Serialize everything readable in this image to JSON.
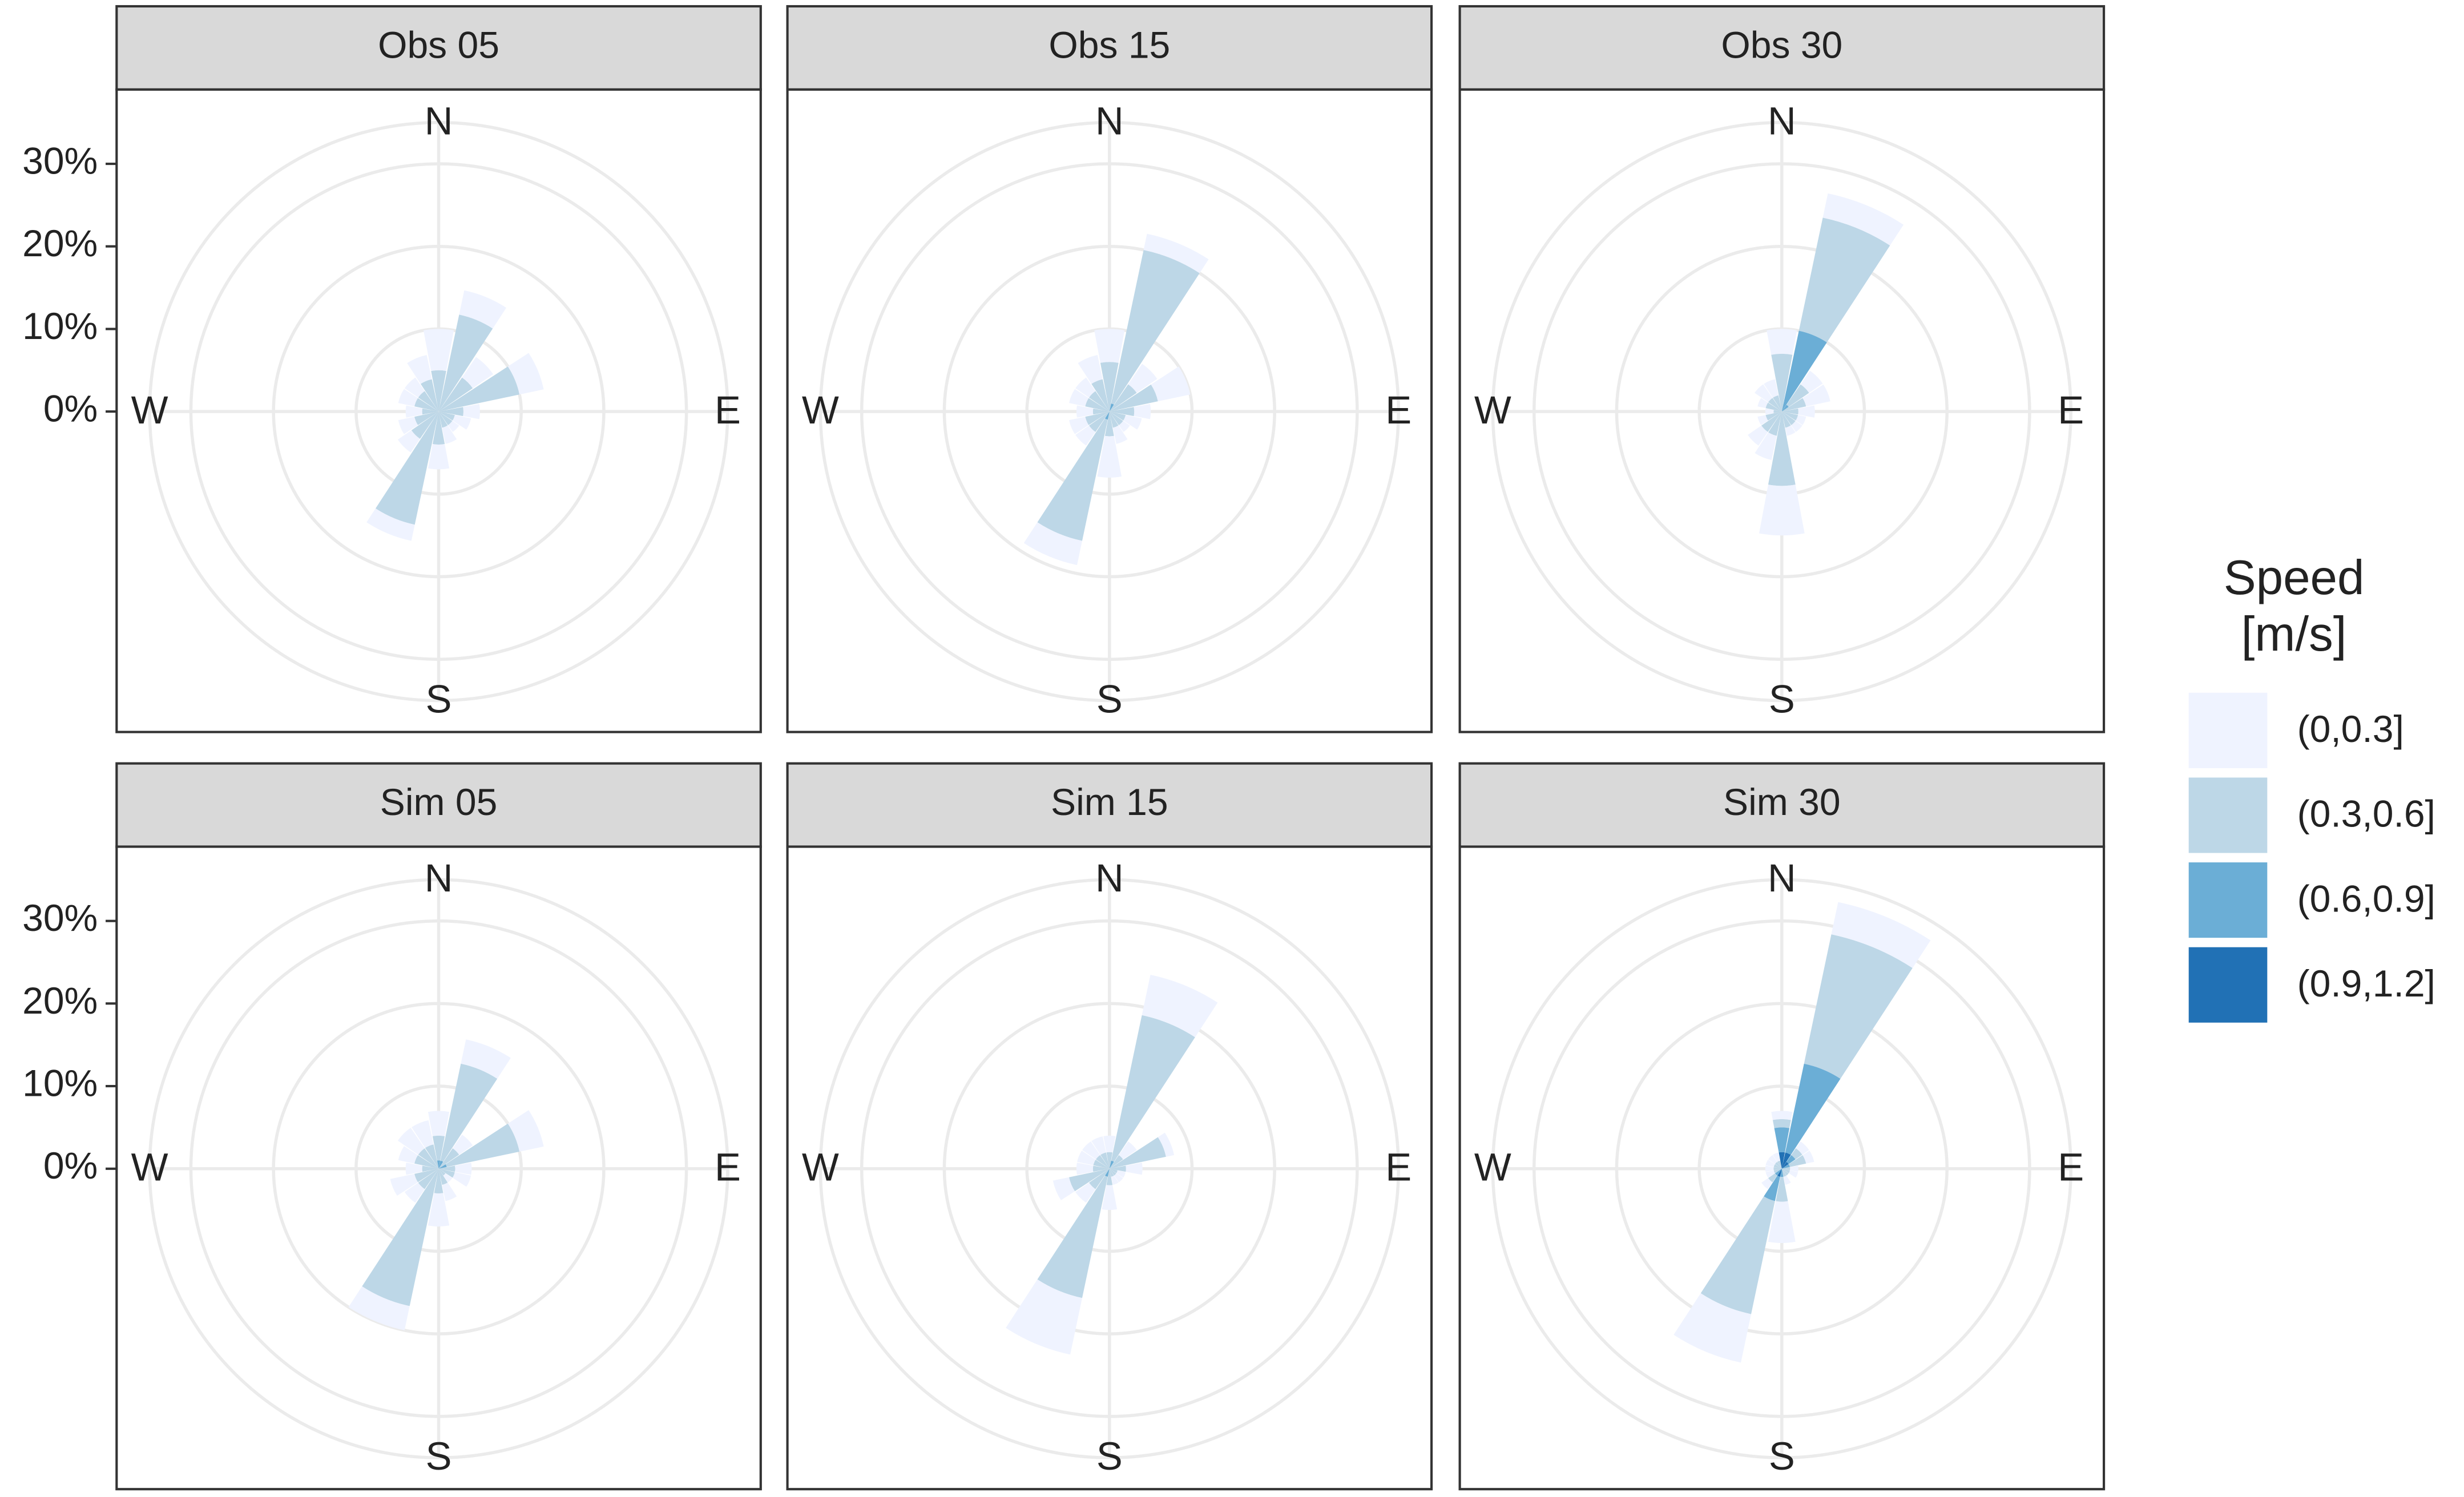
{
  "chart_data": [
    {
      "type": "windrose",
      "title": "Obs 05",
      "legend_title": [
        "Speed",
        "[m/s]"
      ],
      "categories": [
        "N",
        null,
        null,
        null,
        "E",
        null,
        null,
        null,
        "S",
        null,
        null,
        null,
        "W",
        null,
        null,
        null
      ],
      "ylim": [
        0,
        35
      ],
      "yticks": [
        {
          "value": 0,
          "label": "0%"
        },
        {
          "value": 10,
          "label": "10%"
        },
        {
          "value": 20,
          "label": "20%"
        },
        {
          "value": 30,
          "label": "30%"
        }
      ],
      "series": [
        {
          "name": "(0,0.3]",
          "color": "#eff3ff",
          "values": [
            5,
            3,
            3,
            3,
            2,
            2,
            1,
            2,
            3,
            2,
            2,
            2,
            2,
            2,
            2,
            3
          ]
        },
        {
          "name": "(0.3,0.6]",
          "color": "#bdd7e7",
          "values": [
            5,
            12,
            5,
            10,
            3,
            2,
            2,
            2,
            4,
            14,
            4,
            3,
            2,
            3,
            3,
            4
          ]
        },
        {
          "name": "(0.6,0.9]",
          "color": "#6baed6",
          "values": [
            0,
            0,
            0,
            0,
            0,
            0,
            0,
            0,
            0,
            0,
            0,
            0,
            0,
            0,
            0,
            0
          ]
        },
        {
          "name": "(0.9,1.2]",
          "color": "#2171b5",
          "values": [
            0,
            0,
            0,
            0,
            0,
            0,
            0,
            0,
            0,
            0,
            0,
            0,
            0,
            0,
            0,
            0
          ]
        }
      ]
    },
    {
      "type": "windrose",
      "title": "Obs 15",
      "categories": [
        "N",
        null,
        null,
        null,
        "E",
        null,
        null,
        null,
        "S",
        null,
        null,
        null,
        "W",
        null,
        null,
        null
      ],
      "ylim": [
        0,
        35
      ],
      "yticks": [
        0,
        10,
        20,
        30
      ],
      "series": [
        {
          "name": "(0,0.3]",
          "color": "#eff3ff",
          "values": [
            4,
            2,
            3,
            4,
            2,
            2,
            1,
            2,
            5,
            3,
            2,
            2,
            2,
            2,
            2,
            3
          ]
        },
        {
          "name": "(0.3,0.6]",
          "color": "#bdd7e7",
          "values": [
            6,
            19,
            4,
            6,
            3,
            2,
            2,
            2,
            3,
            15,
            3,
            3,
            2,
            3,
            3,
            4
          ]
        },
        {
          "name": "(0.6,0.9]",
          "color": "#6baed6",
          "values": [
            0,
            1,
            0,
            0,
            0,
            0,
            0,
            0,
            0,
            1,
            0,
            0,
            0,
            0,
            0,
            0
          ]
        },
        {
          "name": "(0.9,1.2]",
          "color": "#2171b5",
          "values": [
            0,
            0,
            0,
            0,
            0,
            0,
            0,
            0,
            0,
            0,
            0,
            0,
            0,
            0,
            0,
            0
          ]
        }
      ]
    },
    {
      "type": "windrose",
      "title": "Obs 30",
      "categories": [
        "N",
        null,
        null,
        null,
        "E",
        null,
        null,
        null,
        "S",
        null,
        null,
        null,
        "W",
        null,
        null,
        null
      ],
      "ylim": [
        0,
        35
      ],
      "yticks": [
        0,
        10,
        20,
        30
      ],
      "series": [
        {
          "name": "(0,0.3]",
          "color": "#eff3ff",
          "values": [
            3,
            3,
            2,
            3,
            2,
            1,
            1,
            1,
            6,
            3,
            2,
            1,
            1,
            1,
            2,
            2
          ]
        },
        {
          "name": "(0.3,0.6]",
          "color": "#bdd7e7",
          "values": [
            7,
            14,
            3,
            3,
            2,
            2,
            2,
            2,
            9,
            3,
            3,
            2,
            1,
            2,
            2,
            2
          ]
        },
        {
          "name": "(0.6,0.9]",
          "color": "#6baed6",
          "values": [
            0,
            10,
            1,
            0,
            0,
            0,
            0,
            0,
            0,
            0,
            0,
            0,
            0,
            0,
            0,
            0
          ]
        },
        {
          "name": "(0.9,1.2]",
          "color": "#2171b5",
          "values": [
            0,
            0,
            0,
            0,
            0,
            0,
            0,
            0,
            0,
            0,
            0,
            0,
            0,
            0,
            0,
            0
          ]
        }
      ]
    },
    {
      "type": "windrose",
      "title": "Sim 05",
      "categories": [
        "N",
        null,
        null,
        null,
        "E",
        null,
        null,
        null,
        "S",
        null,
        null,
        null,
        "W",
        null,
        null,
        null
      ],
      "ylim": [
        0,
        35
      ],
      "yticks": [
        {
          "value": 0,
          "label": "0%"
        },
        {
          "value": 10,
          "label": "10%"
        },
        {
          "value": 20,
          "label": "20%"
        },
        {
          "value": 30,
          "label": "30%"
        }
      ],
      "series": [
        {
          "name": "(0,0.3]",
          "color": "#eff3ff",
          "values": [
            3,
            3,
            2,
            3,
            2,
            2,
            1,
            2,
            4,
            3,
            2,
            3,
            2,
            2,
            3,
            3
          ]
        },
        {
          "name": "(0.3,0.6]",
          "color": "#bdd7e7",
          "values": [
            3,
            12,
            3,
            9,
            2,
            2,
            1,
            2,
            3,
            17,
            3,
            3,
            2,
            3,
            3,
            3
          ]
        },
        {
          "name": "(0.6,0.9]",
          "color": "#6baed6",
          "values": [
            1,
            1,
            0,
            1,
            0,
            0,
            0,
            0,
            0,
            0,
            0,
            0,
            0,
            0,
            0,
            0
          ]
        },
        {
          "name": "(0.9,1.2]",
          "color": "#2171b5",
          "values": [
            0,
            0,
            0,
            0,
            0,
            0,
            0,
            0,
            0,
            0,
            0,
            0,
            0,
            0,
            0,
            0
          ]
        }
      ]
    },
    {
      "type": "windrose",
      "title": "Sim 15",
      "categories": [
        "N",
        null,
        null,
        null,
        "E",
        null,
        null,
        null,
        "S",
        null,
        null,
        null,
        "W",
        null,
        null,
        null
      ],
      "ylim": [
        0,
        35
      ],
      "yticks": [
        0,
        10,
        20,
        30
      ],
      "series": [
        {
          "name": "(0,0.3]",
          "color": "#eff3ff",
          "values": [
            2,
            5,
            2,
            1,
            2,
            1,
            1,
            1,
            3,
            7,
            2,
            2,
            2,
            2,
            2,
            2
          ]
        },
        {
          "name": "(0.3,0.6]",
          "color": "#bdd7e7",
          "values": [
            2,
            18,
            2,
            7,
            2,
            1,
            1,
            1,
            2,
            15,
            3,
            5,
            2,
            2,
            2,
            2
          ]
        },
        {
          "name": "(0.6,0.9]",
          "color": "#6baed6",
          "values": [
            0,
            1,
            0,
            0,
            0,
            0,
            0,
            0,
            0,
            1,
            0,
            0,
            0,
            0,
            0,
            0
          ]
        },
        {
          "name": "(0.9,1.2]",
          "color": "#2171b5",
          "values": [
            0,
            0,
            0,
            0,
            0,
            0,
            0,
            0,
            0,
            0,
            0,
            0,
            0,
            0,
            0,
            0
          ]
        }
      ]
    },
    {
      "type": "windrose",
      "title": "Sim 30",
      "categories": [
        "N",
        null,
        null,
        null,
        "E",
        null,
        null,
        null,
        "S",
        null,
        null,
        null,
        "W",
        null,
        null,
        null
      ],
      "ylim": [
        0,
        35
      ],
      "yticks": [
        0,
        10,
        20,
        30
      ],
      "series": [
        {
          "name": "(0,0.3]",
          "color": "#eff3ff",
          "values": [
            1,
            4,
            1,
            1,
            1,
            1,
            0,
            1,
            5,
            6,
            1,
            1,
            1,
            1,
            1,
            1
          ]
        },
        {
          "name": "(0.3,0.6]",
          "color": "#bdd7e7",
          "values": [
            1,
            16,
            1,
            2,
            1,
            1,
            1,
            1,
            3,
            14,
            1,
            1,
            1,
            1,
            1,
            1
          ]
        },
        {
          "name": "(0.6,0.9]",
          "color": "#6baed6",
          "values": [
            3,
            11,
            1,
            1,
            0,
            0,
            0,
            0,
            1,
            3,
            1,
            0,
            0,
            0,
            0,
            0
          ]
        },
        {
          "name": "(0.9,1.2]",
          "color": "#2171b5",
          "values": [
            2,
            2,
            1,
            0,
            0,
            0,
            0,
            0,
            0,
            1,
            0,
            0,
            0,
            0,
            0,
            0
          ]
        }
      ]
    }
  ]
}
